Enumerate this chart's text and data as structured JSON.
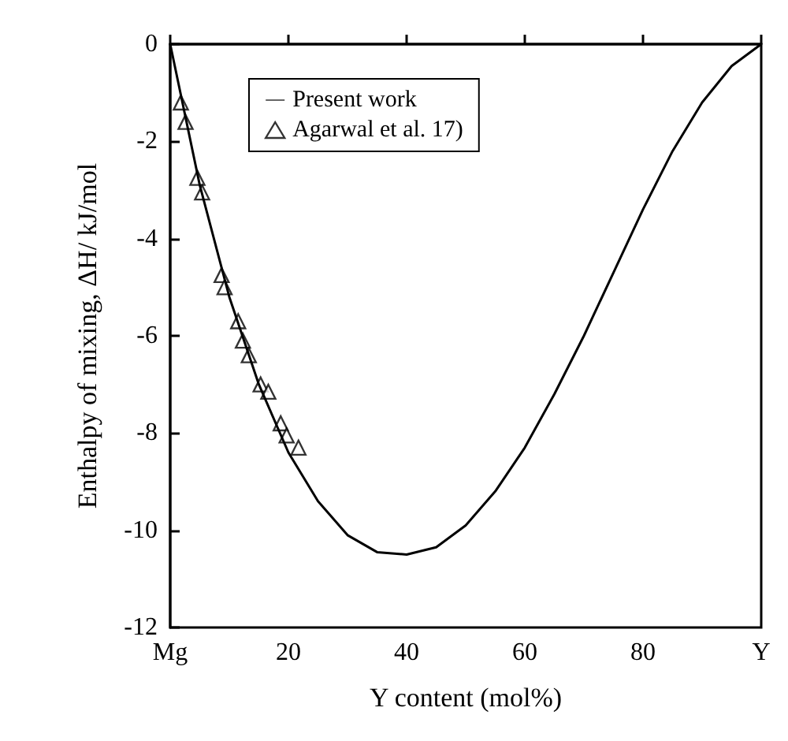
{
  "chart_data": {
    "type": "line",
    "xlabel": "Y content (mol%)",
    "ylabel": "Enthalpy of mixing, ΔH/ kJ/mol",
    "xlim": [
      0,
      100
    ],
    "xticks": [
      {
        "value": 0,
        "label": "Mg"
      },
      20,
      40,
      60,
      80,
      {
        "value": 100,
        "label": "Y"
      }
    ],
    "ylim": [
      -12,
      0
    ],
    "yticks": [
      -12,
      -10,
      -8,
      -6,
      -4,
      -2,
      0
    ],
    "grid": false,
    "legend": "top",
    "series": [
      {
        "name": "Present work",
        "color": "#000000",
        "marker": "none",
        "line_style": "solid",
        "x": [
          0,
          5,
          10,
          15,
          20,
          25,
          30,
          35,
          40,
          45,
          50,
          55,
          60,
          65,
          70,
          75,
          80,
          85,
          90,
          95,
          100
        ],
        "values": [
          0,
          -2.9,
          -5.2,
          -7.0,
          -8.4,
          -9.4,
          -10.1,
          -10.45,
          -10.5,
          -10.35,
          -9.9,
          -9.2,
          -8.3,
          -7.2,
          -6.0,
          -4.7,
          -3.4,
          -2.2,
          -1.2,
          -0.45,
          0
        ]
      },
      {
        "name": "Agarwal et al. 17)",
        "type": "scatter",
        "color": "#000000",
        "marker": "triangle",
        "x": [
          1.8,
          2.6,
          4.6,
          5.4,
          8.7,
          9.2,
          11.5,
          12.3,
          13.3,
          15.3,
          16.6,
          18.7,
          19.7,
          21.7
        ],
        "values": [
          -1.2,
          -1.6,
          -2.75,
          -3.05,
          -4.75,
          -5.0,
          -5.7,
          -6.1,
          -6.4,
          -7.0,
          -7.15,
          -7.8,
          -8.05,
          -8.3
        ]
      }
    ]
  }
}
